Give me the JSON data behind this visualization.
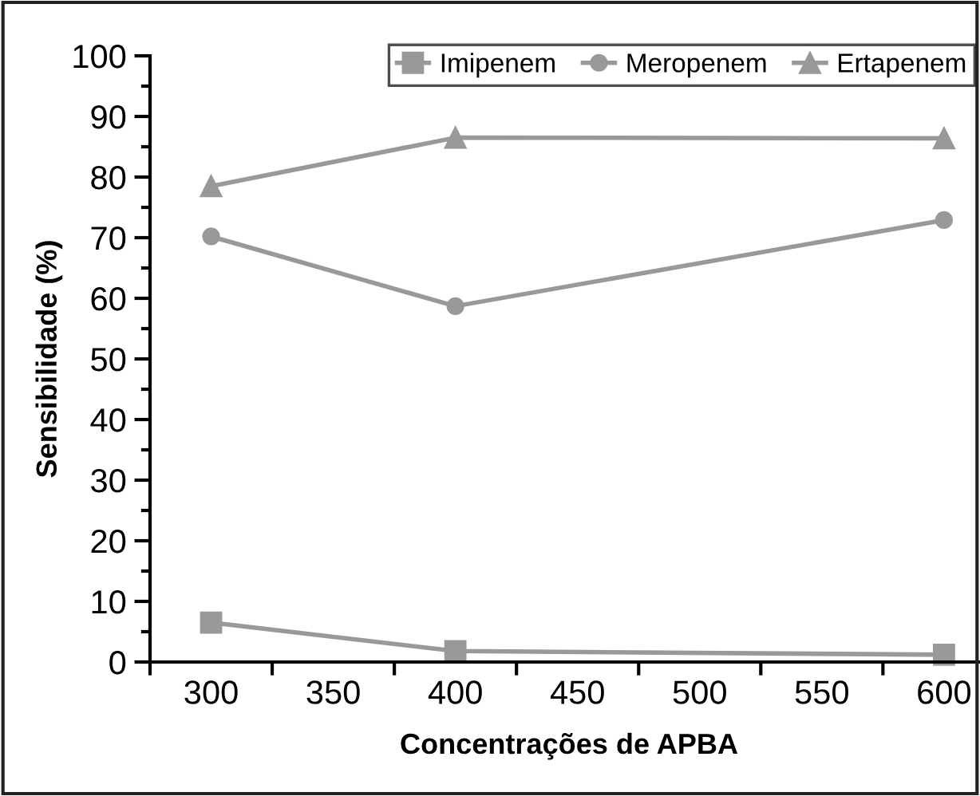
{
  "chart_data": {
    "type": "line",
    "xlabel": "Concentrações de APBA",
    "ylabel": "Sensibilidade (%)",
    "x": [
      300,
      400,
      600
    ],
    "series": [
      {
        "name": "Imipenem",
        "color": "#999999",
        "marker": "square",
        "values": [
          6.5,
          1.8,
          1.2
        ]
      },
      {
        "name": "Meropenem",
        "color": "#999999",
        "marker": "circle",
        "values": [
          70.2,
          58.7,
          72.9
        ]
      },
      {
        "name": "Ertapenem",
        "color": "#999999",
        "marker": "triangle",
        "values": [
          78.5,
          86.5,
          86.4
        ]
      }
    ],
    "xlim": [
      275,
      618
    ],
    "xticks": [
      300,
      350,
      400,
      450,
      500,
      550,
      600
    ],
    "ylim": [
      0,
      100
    ],
    "yticks": [
      0,
      10,
      20,
      30,
      40,
      50,
      60,
      70,
      80,
      90,
      100
    ],
    "grid": false,
    "legend": "top right",
    "line_style": "solid"
  }
}
